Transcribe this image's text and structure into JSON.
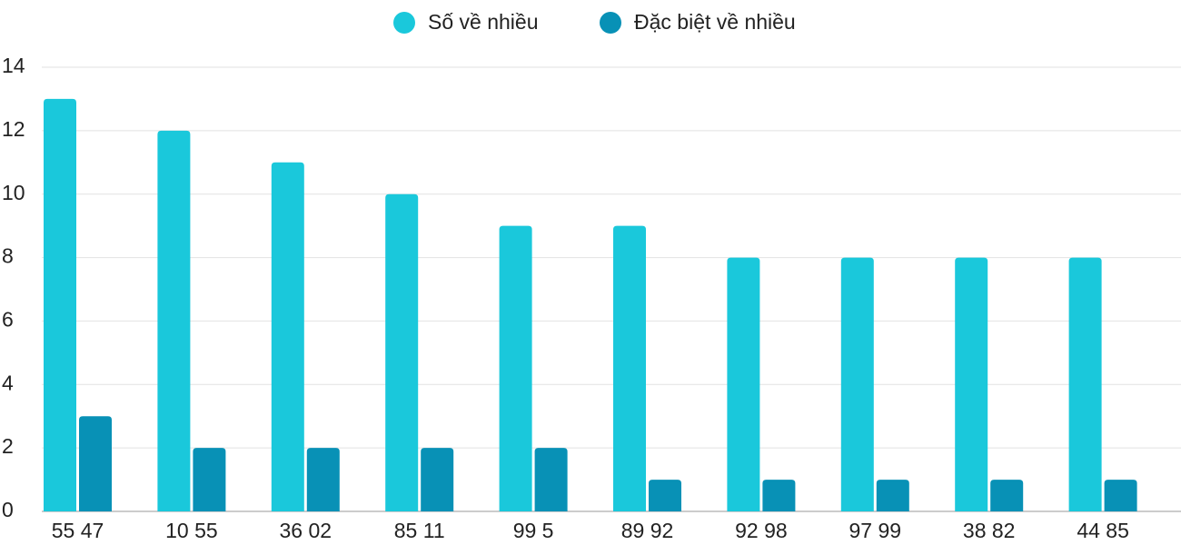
{
  "chart_data": {
    "type": "bar",
    "categories": [
      "55 47",
      "10 55",
      "36 02",
      "85 11",
      "99 5",
      "89 92",
      "92 98",
      "97 99",
      "38 82",
      "44 85"
    ],
    "series": [
      {
        "name": "Số về nhiều",
        "color": "#1ac8db",
        "values": [
          13,
          12,
          11,
          10,
          9,
          9,
          8,
          8,
          8,
          8
        ]
      },
      {
        "name": "Đặc biệt về nhiều",
        "color": "#0891b6",
        "values": [
          3,
          2,
          2,
          2,
          2,
          1,
          1,
          1,
          1,
          1
        ]
      }
    ],
    "ylim": [
      0,
      14
    ],
    "yticks": [
      0,
      2,
      4,
      6,
      8,
      10,
      12,
      14
    ],
    "grid": true,
    "legend": "top"
  }
}
